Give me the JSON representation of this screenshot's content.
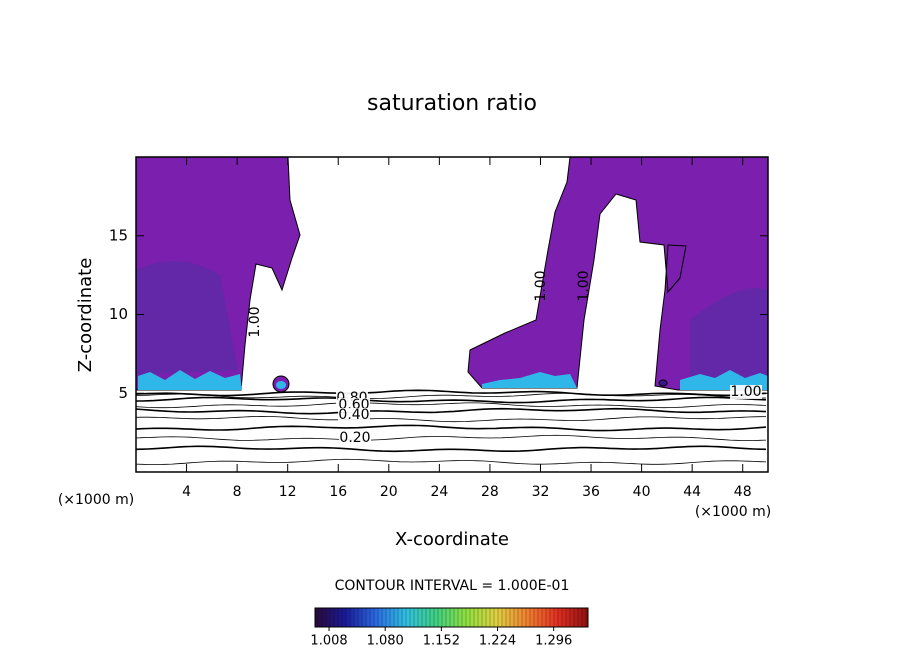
{
  "chart_data": {
    "type": "contour",
    "title": "saturation ratio",
    "x_label": "X-coordinate",
    "y_label": "Z-coordinate",
    "x_unit_labels": [
      "(×1000 m)",
      "(×1000 m)"
    ],
    "xlim": [
      0,
      50
    ],
    "xticks": [
      4,
      8,
      12,
      16,
      20,
      24,
      28,
      32,
      36,
      40,
      44,
      48
    ],
    "ylim": [
      0,
      20
    ],
    "yticks": [
      5,
      10,
      15
    ],
    "contour_labels": [
      "0.80",
      "0.60",
      "0.40",
      "0.20",
      "1.00",
      "1.00",
      "1.00",
      "1.00"
    ],
    "contour_interval_text": "CONTOUR INTERVAL = 1.000E-01",
    "colorbar": {
      "lim": [
        0.99,
        1.34
      ],
      "ticks": [
        1.008,
        {
          "value": 1.08,
          "label": "1.080"
        },
        1.152,
        1.224,
        1.296
      ],
      "colors": [
        "#2a0a3a",
        "#1a1a9a",
        "#2a6ae0",
        "#30c0e0",
        "#40d080",
        "#90e040",
        "#e0d040",
        "#f08030",
        "#e03020",
        "#901010"
      ]
    }
  }
}
